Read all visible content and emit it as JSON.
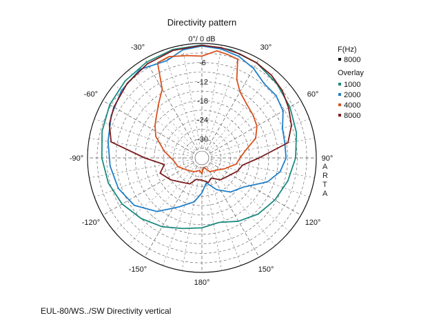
{
  "chart_data": {
    "type": "polar-line",
    "title": "Directivity pattern",
    "r_label": "0°/ 0 dB",
    "r_unit": "dB",
    "r_ticks": [
      "-6",
      "-12",
      "-18",
      "-24",
      "-30"
    ],
    "r_tick_values": [
      -6,
      -12,
      -18,
      -24,
      -30
    ],
    "r_range": [
      -36,
      0
    ],
    "angle_ticks": [
      "0°/ 0 dB",
      "30°",
      "60°",
      "90°",
      "120°",
      "150°",
      "180°",
      "-150°",
      "-120°",
      "-90°",
      "-60°",
      "-30°"
    ],
    "angle_tick_values": [
      0,
      30,
      60,
      90,
      120,
      150,
      180,
      -150,
      -120,
      -90,
      -60,
      -30
    ],
    "grid": true,
    "watermark": "ARTA",
    "legend_position": "right",
    "legend": {
      "freq_title": "F(Hz)",
      "freq_entries": [
        {
          "label": "8000",
          "color": "#000000"
        }
      ],
      "overlay_title": "Overlay"
    },
    "series": [
      {
        "name": "1000",
        "color": "#1a8a80",
        "points": [
          [
            0,
            -0.5
          ],
          [
            15,
            -0.8
          ],
          [
            30,
            -1.5
          ],
          [
            45,
            -2.8
          ],
          [
            60,
            -4
          ],
          [
            75,
            -5.2
          ],
          [
            90,
            -6.5
          ],
          [
            105,
            -8
          ],
          [
            120,
            -9.5
          ],
          [
            135,
            -11
          ],
          [
            150,
            -13
          ],
          [
            165,
            -15
          ],
          [
            180,
            -14
          ],
          [
            195,
            -13
          ],
          [
            210,
            -11
          ],
          [
            225,
            -9
          ],
          [
            240,
            -7
          ],
          [
            255,
            -5.5
          ],
          [
            270,
            -4.5
          ],
          [
            285,
            -3.5
          ],
          [
            300,
            -2.5
          ],
          [
            315,
            -1.8
          ],
          [
            330,
            -1.2
          ],
          [
            345,
            -0.7
          ],
          [
            360,
            -0.5
          ]
        ]
      },
      {
        "name": "2000",
        "color": "#1f7fc9",
        "points": [
          [
            0,
            -0.8
          ],
          [
            10,
            -1.2
          ],
          [
            20,
            -2
          ],
          [
            30,
            -3.5
          ],
          [
            40,
            -5.5
          ],
          [
            50,
            -5.5
          ],
          [
            60,
            -6.5
          ],
          [
            70,
            -9
          ],
          [
            80,
            -9.5
          ],
          [
            90,
            -9.5
          ],
          [
            100,
            -11
          ],
          [
            110,
            -14
          ],
          [
            125,
            -20
          ],
          [
            140,
            -22
          ],
          [
            155,
            -25
          ],
          [
            170,
            -28
          ],
          [
            180,
            -25
          ],
          [
            190,
            -22
          ],
          [
            205,
            -19
          ],
          [
            220,
            -14
          ],
          [
            235,
            -10
          ],
          [
            250,
            -8
          ],
          [
            265,
            -7
          ],
          [
            280,
            -6
          ],
          [
            295,
            -4.5
          ],
          [
            310,
            -3
          ],
          [
            325,
            -2
          ],
          [
            340,
            -3.5
          ],
          [
            350,
            -1.5
          ],
          [
            360,
            -0.8
          ]
        ]
      },
      {
        "name": "4000",
        "color": "#d9501c",
        "points": [
          [
            0,
            -4
          ],
          [
            8,
            -2
          ],
          [
            14,
            -2.5
          ],
          [
            20,
            -3
          ],
          [
            24,
            -9
          ],
          [
            30,
            -12
          ],
          [
            40,
            -14
          ],
          [
            50,
            -15
          ],
          [
            60,
            -16
          ],
          [
            70,
            -18
          ],
          [
            80,
            -22
          ],
          [
            90,
            -24
          ],
          [
            100,
            -25
          ],
          [
            115,
            -28
          ],
          [
            130,
            -30
          ],
          [
            150,
            -31
          ],
          [
            170,
            -33
          ],
          [
            180,
            -31
          ],
          [
            190,
            -32
          ],
          [
            210,
            -31
          ],
          [
            230,
            -30
          ],
          [
            250,
            -28
          ],
          [
            265,
            -27
          ],
          [
            280,
            -24
          ],
          [
            295,
            -20
          ],
          [
            305,
            -18
          ],
          [
            315,
            -16
          ],
          [
            322,
            -14
          ],
          [
            330,
            -11
          ],
          [
            335,
            -3
          ],
          [
            342,
            -2.5
          ],
          [
            352,
            -3.5
          ],
          [
            360,
            -4
          ]
        ]
      },
      {
        "name": "8000",
        "color": "#7a1c1c",
        "points": [
          [
            0,
            -0.6
          ],
          [
            10,
            -0.8
          ],
          [
            20,
            -1.2
          ],
          [
            30,
            -1.5
          ],
          [
            40,
            -2
          ],
          [
            50,
            -3
          ],
          [
            60,
            -4.5
          ],
          [
            70,
            -6
          ],
          [
            80,
            -8.5
          ],
          [
            90,
            -18
          ],
          [
            100,
            -23
          ],
          [
            110,
            -24
          ],
          [
            125,
            -26
          ],
          [
            140,
            -27
          ],
          [
            155,
            -29
          ],
          [
            165,
            -28
          ],
          [
            180,
            -29
          ],
          [
            195,
            -29
          ],
          [
            205,
            -27
          ],
          [
            220,
            -26
          ],
          [
            235,
            -24
          ],
          [
            250,
            -22
          ],
          [
            260,
            -24
          ],
          [
            270,
            -18
          ],
          [
            280,
            -7
          ],
          [
            290,
            -5
          ],
          [
            300,
            -4
          ],
          [
            315,
            -2.8
          ],
          [
            330,
            -1.8
          ],
          [
            345,
            -1
          ],
          [
            360,
            -0.6
          ]
        ]
      }
    ]
  },
  "caption": "EUL-80/WS../SW  Directivity vertical"
}
